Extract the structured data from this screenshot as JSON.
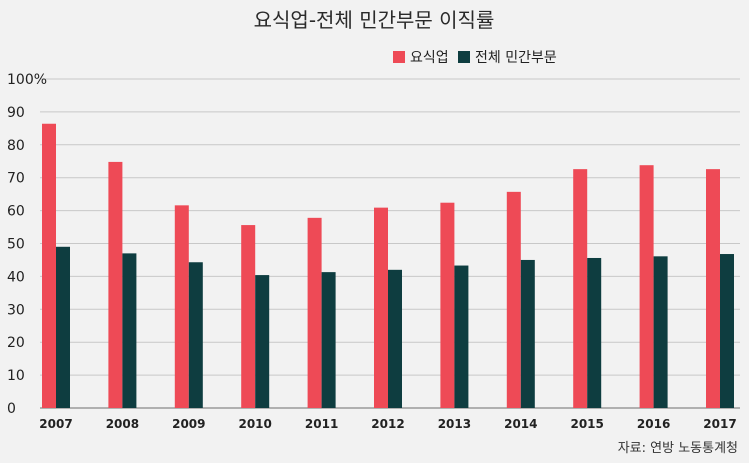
{
  "chart_data": {
    "type": "bar",
    "title": "요식업-전체 민간부문 이직률",
    "categories": [
      "2007",
      "2008",
      "2009",
      "2010",
      "2011",
      "2012",
      "2013",
      "2014",
      "2015",
      "2016",
      "2017"
    ],
    "series": [
      {
        "name": "요식업",
        "color": "#ee4a56",
        "values": [
          86.4,
          74.8,
          61.6,
          55.6,
          57.8,
          60.9,
          62.4,
          65.7,
          72.6,
          73.8,
          72.6
        ]
      },
      {
        "name": "전체 민간부문",
        "color": "#0e3d40",
        "values": [
          49.0,
          47.0,
          44.3,
          40.4,
          41.3,
          42.0,
          43.3,
          45.0,
          45.6,
          46.1,
          46.8
        ]
      }
    ],
    "ylim": [
      0,
      100
    ],
    "yticks": [
      "0",
      "10",
      "20",
      "30",
      "40",
      "50",
      "60",
      "70",
      "80",
      "90",
      "100%"
    ],
    "grid": true,
    "legend_position": "top-right",
    "source": "자료: 연방 노동통계청"
  }
}
